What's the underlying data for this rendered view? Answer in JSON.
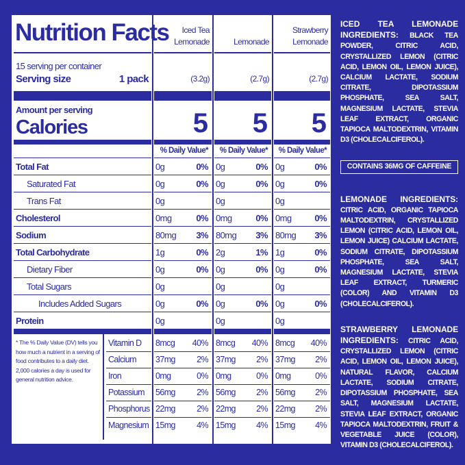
{
  "label": {
    "title": "Nutrition Facts",
    "servings": "15 serving per container",
    "serving_size_label": "Serving size",
    "serving_size": "1 pack",
    "amount_per_serving": "Amount per serving",
    "calories_label": "Calories",
    "products": [
      {
        "name": [
          "Iced Tea",
          "Lemonade"
        ],
        "size": "(3.2g)",
        "calories": 5,
        "dv_header": "% Daily Value*"
      },
      {
        "name": [
          "Lemonade"
        ],
        "size": "(2.7g)",
        "calories": 5,
        "dv_header": "% Daily Value*"
      },
      {
        "name": [
          "Strawberry",
          "Lemonade"
        ],
        "size": "(2.7g)",
        "calories": 5,
        "dv_header": "% Daily Value*"
      }
    ],
    "nutrients": [
      {
        "name": "Total Fat",
        "bold": true,
        "indent": 0,
        "values": [
          [
            "0g",
            "0%"
          ],
          [
            "0g",
            "0%"
          ],
          [
            "0g",
            "0%"
          ]
        ]
      },
      {
        "name": "Saturated Fat",
        "bold": false,
        "indent": 1,
        "values": [
          [
            "0g",
            "0%"
          ],
          [
            "0g",
            "0%"
          ],
          [
            "0g",
            "0%"
          ]
        ]
      },
      {
        "name": "Trans Fat",
        "bold": false,
        "indent": 1,
        "values": [
          [
            "0g",
            null
          ],
          [
            "0g",
            null
          ],
          [
            "0g",
            null
          ]
        ]
      },
      {
        "name": "Cholesterol",
        "bold": true,
        "indent": 0,
        "values": [
          [
            "0mg",
            "0%"
          ],
          [
            "0mg",
            "0%"
          ],
          [
            "0mg",
            "0%"
          ]
        ]
      },
      {
        "name": "Sodium",
        "bold": true,
        "indent": 0,
        "values": [
          [
            "80mg",
            "3%"
          ],
          [
            "80mg",
            "3%"
          ],
          [
            "80mg",
            "3%"
          ]
        ]
      },
      {
        "name": "Total Carbohydrate",
        "bold": true,
        "indent": 0,
        "values": [
          [
            "1g",
            "0%"
          ],
          [
            "2g",
            "1%"
          ],
          [
            "1g",
            "0%"
          ]
        ]
      },
      {
        "name": "Dietary Fiber",
        "bold": false,
        "indent": 1,
        "values": [
          [
            "0g",
            "0%"
          ],
          [
            "0g",
            "0%"
          ],
          [
            "0g",
            "0%"
          ]
        ]
      },
      {
        "name": "Total Sugars",
        "bold": false,
        "indent": 1,
        "values": [
          [
            "0g",
            null
          ],
          [
            "0g",
            null
          ],
          [
            "0g",
            null
          ]
        ]
      },
      {
        "name": "Includes Added Sugars",
        "bold": false,
        "indent": 2,
        "values": [
          [
            "0g",
            "0%"
          ],
          [
            "0g",
            "0%"
          ],
          [
            "0g",
            "0%"
          ]
        ]
      },
      {
        "name": "Protein",
        "bold": true,
        "indent": 0,
        "values": [
          [
            "0g",
            null
          ],
          [
            "0g",
            null
          ],
          [
            "0g",
            null
          ]
        ]
      }
    ],
    "footnote": "* The % Daily Value (DV) tells you how much a nutrient in a serving of food contributes to a daily diet. 2,000 calories a day is used for general nutrition advice.",
    "vitamins": [
      {
        "name": "Vitamin D",
        "values": [
          [
            "8mcg",
            "40%"
          ],
          [
            "8mcg",
            "40%"
          ],
          [
            "8mcg",
            "40%"
          ]
        ]
      },
      {
        "name": "Calcium",
        "values": [
          [
            "37mg",
            "2%"
          ],
          [
            "37mg",
            "2%"
          ],
          [
            "37mg",
            "2%"
          ]
        ]
      },
      {
        "name": "Iron",
        "values": [
          [
            "0mg",
            "0%"
          ],
          [
            "0mg",
            "0%"
          ],
          [
            "0mg",
            "0%"
          ]
        ]
      },
      {
        "name": "Potassium",
        "values": [
          [
            "56mg",
            "2%"
          ],
          [
            "56mg",
            "2%"
          ],
          [
            "56mg",
            "2%"
          ]
        ]
      },
      {
        "name": "Phosphorus",
        "values": [
          [
            "22mg",
            "2%"
          ],
          [
            "22mg",
            "2%"
          ],
          [
            "22mg",
            "2%"
          ]
        ]
      },
      {
        "name": "Magnesium",
        "values": [
          [
            "15mg",
            "4%"
          ],
          [
            "15mg",
            "4%"
          ],
          [
            "15mg",
            "4%"
          ]
        ]
      }
    ]
  },
  "ingredients": [
    {
      "heading": "ICED TEA LEMONADE INGREDIENTS:",
      "text": "BLACK TEA POWDER, CITRIC ACID, CRYSTALLIZED LEMON (CITRIC ACID, LEMON OIL, LEMON JUICE), CALCIUM LACTATE, SODIUM CITRATE, DIPOTASSIUM PHOSPHATE, SEA SALT, MAGNESIUM LACTATE, STEVIA LEAF EXTRACT, ORGANIC TAPIOCA MALTODEXTRIN, VITAMIN D3 (CHOLECALCIFEROL).",
      "note": "CONTAINS 36MG OF CAFFEINE"
    },
    {
      "heading": "LEMONADE INGREDIENTS:",
      "text": "CITRIC ACID, ORGANIC TAPIOCA MALTODEXTRIN, CRYSTALLIZED LEMON (CITRIC ACID, LEMON OIL, LEMON JUICE) CALCIUM LACTATE, SODIUM CITRATE, DIPOTASSIUM PHOSPHATE, SEA SALT, MAGNESIUM LACTATE, STEVIA LEAF EXTRACT, TURMERIC (COLOR) AND VITAMIN D3 (CHOLECALCIFEROL)."
    },
    {
      "heading": "STRAWBERRY LEMONADE INGREDIENTS:",
      "text": "CITRIC ACID, CRYSTALLIZED LEMON (CITRIC ACID, LEMON OIL, LEMON JUICE), NATURAL FLAVOR, CALCIUM LACTATE, SODIUM CITRATE, DIPOTASSIUM PHOSPHATE, SEA SALT, MAGNESIUM LACTATE, STEVIA LEAF EXTRACT, ORGANIC TAPIOCA MALTODEXTRIN, FRUIT & VEGETABLE JUICE (COLOR), VITAMIN D3 (CHOLECALCIFEROL)."
    }
  ]
}
